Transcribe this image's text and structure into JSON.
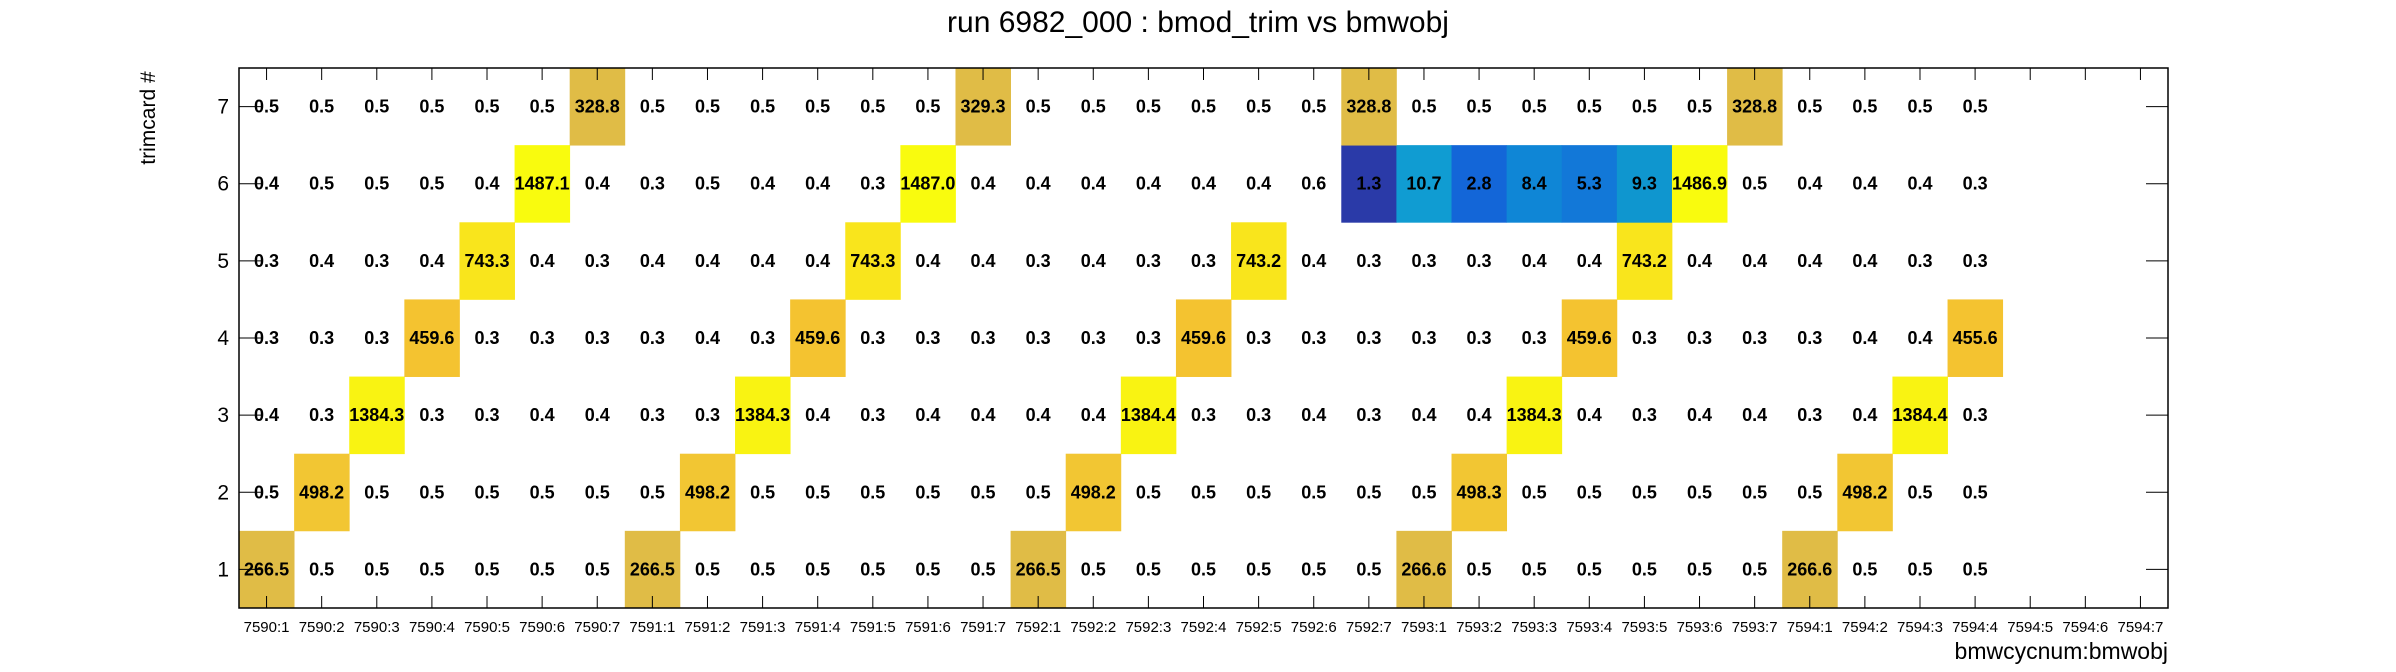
{
  "chart_data": {
    "type": "heatmap",
    "title": "run 6982_000 : bmod_trim vs bmwobj",
    "xlabel": "bmwcycnum:bmwobj",
    "ylabel": "trimcard #",
    "x_categories": [
      "7590:1",
      "7590:2",
      "7590:3",
      "7590:4",
      "7590:5",
      "7590:6",
      "7590:7",
      "7591:1",
      "7591:2",
      "7591:3",
      "7591:4",
      "7591:5",
      "7591:6",
      "7591:7",
      "7592:1",
      "7592:2",
      "7592:3",
      "7592:4",
      "7592:5",
      "7592:6",
      "7592:7",
      "7593:1",
      "7593:2",
      "7593:3",
      "7593:4",
      "7593:5",
      "7593:6",
      "7593:7",
      "7594:1",
      "7594:2",
      "7594:3",
      "7594:4",
      "7594:5",
      "7594:6",
      "7594:7"
    ],
    "y_categories": [
      "1",
      "2",
      "3",
      "4",
      "5",
      "6",
      "7"
    ],
    "grid": false,
    "rows": [
      {
        "y": "1",
        "values": [
          266.5,
          0.5,
          0.5,
          0.5,
          0.5,
          0.5,
          0.5,
          266.5,
          0.5,
          0.5,
          0.5,
          0.5,
          0.5,
          0.5,
          266.5,
          0.5,
          0.5,
          0.5,
          0.5,
          0.5,
          0.5,
          266.6,
          0.5,
          0.5,
          0.5,
          0.5,
          0.5,
          0.5,
          266.6,
          0.5,
          0.5,
          0.5,
          null,
          null,
          null
        ],
        "labels": [
          "266.5",
          "0.5",
          "0.5",
          "0.5",
          "0.5",
          "0.5",
          "0.5",
          "266.5",
          "0.5",
          "0.5",
          "0.5",
          "0.5",
          "0.5",
          "0.5",
          "266.5",
          "0.5",
          "0.5",
          "0.5",
          "0.5",
          "0.5",
          "0.5",
          "266.6",
          "0.5",
          "0.5",
          "0.5",
          "0.5",
          "0.5",
          "0.5",
          "266.6",
          "0.5",
          "0.5",
          "0.5",
          null,
          null,
          null
        ]
      },
      {
        "y": "2",
        "values": [
          0.5,
          498.2,
          0.5,
          0.5,
          0.5,
          0.5,
          0.5,
          0.5,
          498.2,
          0.5,
          0.5,
          0.5,
          0.5,
          0.5,
          0.5,
          498.2,
          0.5,
          0.5,
          0.5,
          0.5,
          0.5,
          0.5,
          498.3,
          0.5,
          0.5,
          0.5,
          0.5,
          0.5,
          0.5,
          498.2,
          0.5,
          0.5,
          null,
          null,
          null
        ],
        "labels": [
          "0.5",
          "498.2",
          "0.5",
          "0.5",
          "0.5",
          "0.5",
          "0.5",
          "0.5",
          "498.2",
          "0.5",
          "0.5",
          "0.5",
          "0.5",
          "0.5",
          "0.5",
          "498.2",
          "0.5",
          "0.5",
          "0.5",
          "0.5",
          "0.5",
          "0.5",
          "498.3",
          "0.5",
          "0.5",
          "0.5",
          "0.5",
          "0.5",
          "0.5",
          "498.2",
          "0.5",
          "0.5",
          null,
          null,
          null
        ]
      },
      {
        "y": "3",
        "values": [
          0.4,
          0.3,
          1384.3,
          0.3,
          0.3,
          0.4,
          0.4,
          0.3,
          0.3,
          1384.3,
          0.4,
          0.3,
          0.4,
          0.4,
          0.4,
          0.4,
          1384.4,
          0.3,
          0.3,
          0.4,
          0.3,
          0.4,
          0.4,
          1384.3,
          0.4,
          0.3,
          0.4,
          0.4,
          0.3,
          0.4,
          1384.4,
          0.3,
          null,
          null,
          null
        ],
        "labels": [
          "0.4",
          "0.3",
          "1384.3",
          "0.3",
          "0.3",
          "0.4",
          "0.4",
          "0.3",
          "0.3",
          "1384.3",
          "0.4",
          "0.3",
          "0.4",
          "0.4",
          "0.4",
          "0.4",
          "1384.4",
          "0.3",
          "0.3",
          "0.4",
          "0.3",
          "0.4",
          "0.4",
          "1384.3",
          "0.4",
          "0.3",
          "0.4",
          "0.4",
          "0.3",
          "0.4",
          "1384.4",
          "0.3",
          null,
          null,
          null
        ]
      },
      {
        "y": "4",
        "values": [
          0.3,
          0.3,
          0.3,
          459.6,
          0.3,
          0.3,
          0.3,
          0.3,
          0.4,
          0.3,
          459.6,
          0.3,
          0.3,
          0.3,
          0.3,
          0.3,
          0.3,
          459.6,
          0.3,
          0.3,
          0.3,
          0.3,
          0.3,
          0.3,
          459.6,
          0.3,
          0.3,
          0.3,
          0.3,
          0.4,
          0.4,
          455.6,
          null,
          null,
          null
        ],
        "labels": [
          "0.3",
          "0.3",
          "0.3",
          "459.6",
          "0.3",
          "0.3",
          "0.3",
          "0.3",
          "0.4",
          "0.3",
          "459.6",
          "0.3",
          "0.3",
          "0.3",
          "0.3",
          "0.3",
          "0.3",
          "459.6",
          "0.3",
          "0.3",
          "0.3",
          "0.3",
          "0.3",
          "0.3",
          "459.6",
          "0.3",
          "0.3",
          "0.3",
          "0.3",
          "0.4",
          "0.4",
          "455.6",
          null,
          null,
          null
        ]
      },
      {
        "y": "5",
        "values": [
          0.3,
          0.4,
          0.3,
          0.4,
          743.3,
          0.4,
          0.3,
          0.4,
          0.4,
          0.4,
          0.4,
          743.3,
          0.4,
          0.4,
          0.3,
          0.4,
          0.3,
          0.3,
          743.2,
          0.4,
          0.3,
          0.3,
          0.3,
          0.4,
          0.4,
          743.2,
          0.4,
          0.4,
          0.4,
          0.4,
          0.3,
          0.3,
          null,
          null,
          null
        ],
        "labels": [
          "0.3",
          "0.4",
          "0.3",
          "0.4",
          "743.3",
          "0.4",
          "0.3",
          "0.4",
          "0.4",
          "0.4",
          "0.4",
          "743.3",
          "0.4",
          "0.4",
          "0.3",
          "0.4",
          "0.3",
          "0.3",
          "743.2",
          "0.4",
          "0.3",
          "0.3",
          "0.3",
          "0.4",
          "0.4",
          "743.2",
          "0.4",
          "0.4",
          "0.4",
          "0.4",
          "0.3",
          "0.3",
          null,
          null,
          null
        ]
      },
      {
        "y": "6",
        "values": [
          0.4,
          0.5,
          0.5,
          0.5,
          0.4,
          1487.1,
          0.4,
          0.3,
          0.5,
          0.4,
          0.4,
          0.3,
          1487.0,
          0.4,
          0.4,
          0.4,
          0.4,
          0.4,
          0.4,
          0.6,
          1.3,
          10.7,
          2.8,
          8.4,
          5.3,
          9.3,
          1486.9,
          0.5,
          0.4,
          0.4,
          0.4,
          0.3,
          null,
          null,
          null
        ],
        "labels": [
          "0.4",
          "0.5",
          "0.5",
          "0.5",
          "0.4",
          "1487.1",
          "0.4",
          "0.3",
          "0.5",
          "0.4",
          "0.4",
          "0.3",
          "1487.0",
          "0.4",
          "0.4",
          "0.4",
          "0.4",
          "0.4",
          "0.4",
          "0.6",
          "1.3",
          "10.7",
          "2.8",
          "8.4",
          "5.3",
          "9.3",
          "1486.9",
          "0.5",
          "0.4",
          "0.4",
          "0.4",
          "0.3",
          null,
          null,
          null
        ]
      },
      {
        "y": "7",
        "values": [
          0.5,
          0.5,
          0.5,
          0.5,
          0.5,
          0.5,
          328.8,
          0.5,
          0.5,
          0.5,
          0.5,
          0.5,
          0.5,
          329.3,
          0.5,
          0.5,
          0.5,
          0.5,
          0.5,
          0.5,
          328.8,
          0.5,
          0.5,
          0.5,
          0.5,
          0.5,
          0.5,
          328.8,
          0.5,
          0.5,
          0.5,
          0.5,
          null,
          null,
          null
        ],
        "labels": [
          "0.5",
          "0.5",
          "0.5",
          "0.5",
          "0.5",
          "0.5",
          "328.8",
          "0.5",
          "0.5",
          "0.5",
          "0.5",
          "0.5",
          "0.5",
          "329.3",
          "0.5",
          "0.5",
          "0.5",
          "0.5",
          "0.5",
          "0.5",
          "328.8",
          "0.5",
          "0.5",
          "0.5",
          "0.5",
          "0.5",
          "0.5",
          "328.8",
          "0.5",
          "0.5",
          "0.5",
          "0.5",
          null,
          null,
          null
        ]
      }
    ],
    "cell_colors": {
      "1": {
        "0": "#e0bc46",
        "7": "#e0bc46",
        "14": "#e0bc46",
        "21": "#e0bc46",
        "28": "#e0bc46"
      },
      "2": {
        "1": "#f2c633",
        "8": "#f2c633",
        "15": "#f2c633",
        "22": "#f2c633",
        "29": "#f2c633"
      },
      "3": {
        "2": "#f9f312",
        "9": "#f9f312",
        "16": "#f9f312",
        "23": "#f9f312",
        "30": "#f9f312"
      },
      "4": {
        "3": "#f4c330",
        "10": "#f4c330",
        "17": "#f4c330",
        "24": "#f4c330",
        "31": "#f4c330"
      },
      "5": {
        "4": "#f9e51c",
        "11": "#f9e51c",
        "18": "#f9e51c",
        "25": "#f9e51c"
      },
      "6": {
        "5": "#f9fb0e",
        "12": "#f9fb0e",
        "20": "#2a3aa8",
        "21": "#109cd2",
        "22": "#1366d8",
        "23": "#0f86d6",
        "24": "#1278d8",
        "25": "#0f96cf",
        "26": "#f9fb0e"
      },
      "7": {
        "6": "#e0bc46",
        "13": "#e0bc46",
        "20": "#e0bc46",
        "27": "#e0bc46"
      }
    }
  }
}
